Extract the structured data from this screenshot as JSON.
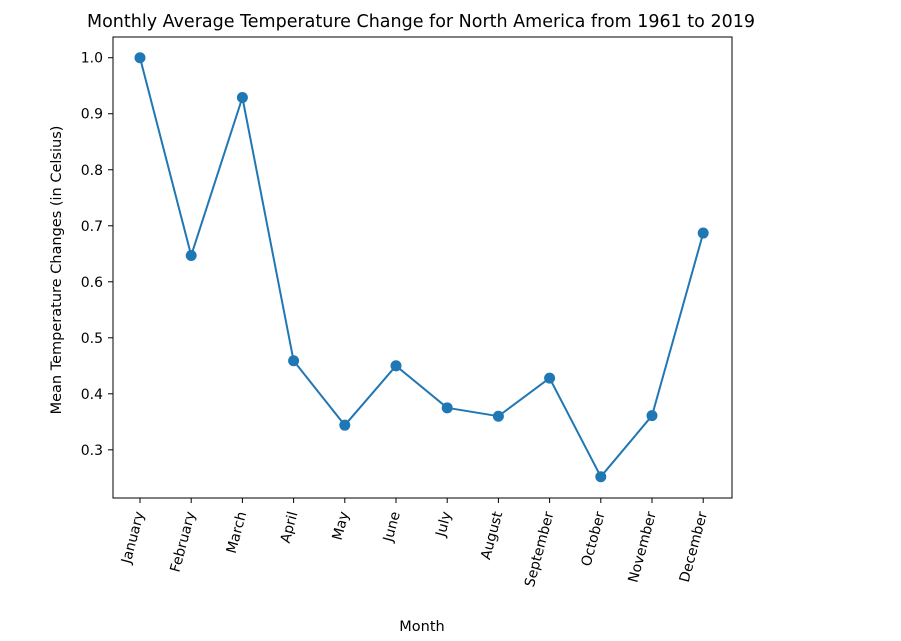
{
  "chart_data": {
    "type": "line",
    "title": "Monthly Average Temperature Change for North America from 1961 to 2019",
    "xlabel": "Month",
    "ylabel": "Mean Temperature Changes (in Celsius)",
    "categories": [
      "January",
      "February",
      "March",
      "April",
      "May",
      "June",
      "July",
      "August",
      "September",
      "October",
      "November",
      "December"
    ],
    "series": [
      {
        "values": [
          1.0,
          0.647,
          0.929,
          0.459,
          0.344,
          0.45,
          0.375,
          0.36,
          0.428,
          0.252,
          0.361,
          0.687
        ]
      }
    ],
    "yticks": [
      0.3,
      0.4,
      0.5,
      0.6,
      0.7,
      0.8,
      0.9,
      1.0
    ],
    "ytick_labels": [
      "0.3",
      "0.4",
      "0.5",
      "0.6",
      "0.7",
      "0.8",
      "0.9",
      "1.0"
    ],
    "ylim": [
      0.214,
      1.037
    ],
    "grid": false,
    "line_color": "#1f77b4",
    "x_tick_rotation_deg": 75
  }
}
